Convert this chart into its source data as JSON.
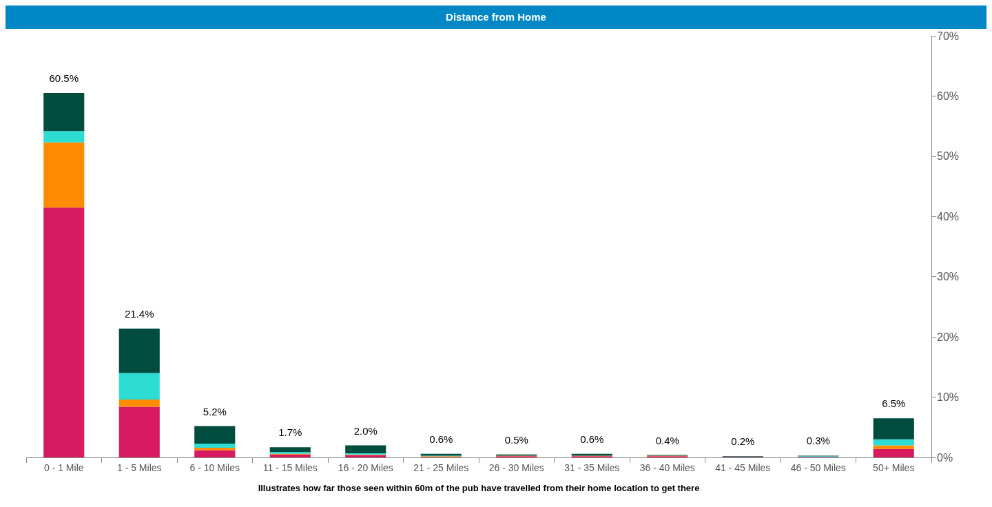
{
  "chart_data": {
    "type": "bar",
    "stacked": true,
    "title": "Distance from Home",
    "xlabel": "Illustrates how far those seen within 60m of the pub have travelled from their home location to get there",
    "categories": [
      "0 - 1 Mile",
      "1 - 5 Miles",
      "6 - 10 Miles",
      "11 - 15 Miles",
      "16 - 20 Miles",
      "21 - 25 Miles",
      "26 - 30 Miles",
      "31 - 35 Miles",
      "36 - 40 Miles",
      "41 - 45 Miles",
      "46 - 50 Miles",
      "50+ Miles"
    ],
    "series": [
      {
        "color": "#d81b60",
        "values": [
          41.5,
          8.4,
          1.2,
          0.5,
          0.4,
          0.1,
          0.2,
          0.2,
          0.2,
          0.1,
          0.1,
          1.4
        ]
      },
      {
        "color": "#ff8c00",
        "values": [
          10.8,
          1.2,
          0.4,
          0.1,
          0.1,
          0.1,
          0.1,
          0.1,
          0.1,
          0,
          0,
          0.6
        ]
      },
      {
        "color": "#2ddcd3",
        "values": [
          1.9,
          4.4,
          0.7,
          0.3,
          0.2,
          0.1,
          0,
          0,
          0,
          0,
          0.1,
          1.0
        ]
      },
      {
        "color": "#004d40",
        "values": [
          6.3,
          7.4,
          2.9,
          0.8,
          1.3,
          0.3,
          0.2,
          0.3,
          0.1,
          0.1,
          0.1,
          3.5
        ]
      }
    ],
    "totals": [
      "60.5%",
      "21.4%",
      "5.2%",
      "1.7%",
      "2.0%",
      "0.6%",
      "0.5%",
      "0.6%",
      "0.4%",
      "0.2%",
      "0.3%",
      "6.5%"
    ],
    "ylim": [
      0,
      70
    ],
    "yticks": [
      {
        "value": 0,
        "label": "0%"
      },
      {
        "value": 10,
        "label": "10%"
      },
      {
        "value": 20,
        "label": "20%"
      },
      {
        "value": 30,
        "label": "30%"
      },
      {
        "value": 40,
        "label": "40%"
      },
      {
        "value": 50,
        "label": "50%"
      },
      {
        "value": 60,
        "label": "60%"
      },
      {
        "value": 70,
        "label": "70%"
      }
    ],
    "grid": false
  }
}
